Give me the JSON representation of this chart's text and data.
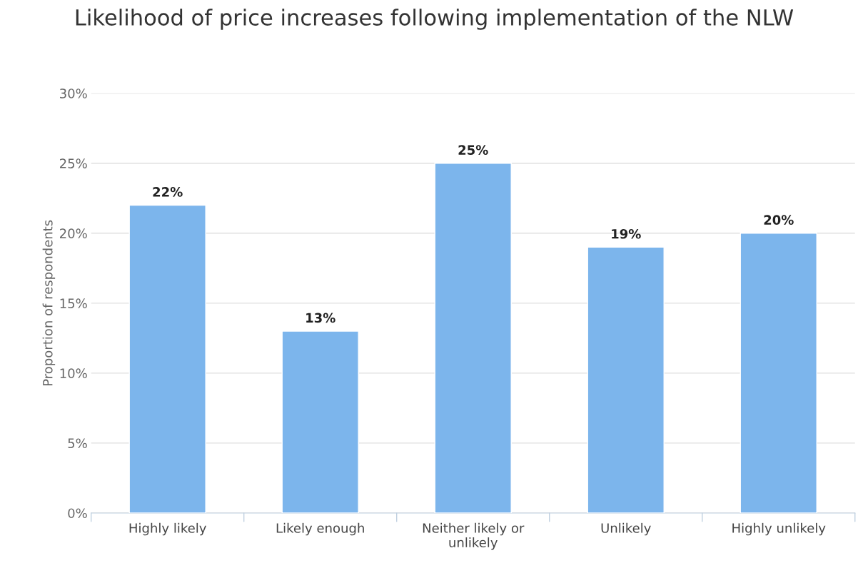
{
  "chart_data": {
    "type": "bar",
    "title": "Likelihood of price increases following implementation of the NLW",
    "ylabel": "Proportion of respondents",
    "categories": [
      "Highly likely",
      "Likely enough",
      "Neither likely or\nunlikely",
      "Unlikely",
      "Highly unlikely"
    ],
    "values": [
      22,
      13,
      25,
      19,
      20
    ],
    "color": "#7cb5ec",
    "value_labels": [
      "22%",
      "13%",
      "25%",
      "19%",
      "20%"
    ],
    "ylim": [
      0,
      30
    ],
    "yticks": [
      {
        "value": 0,
        "label": "0%"
      },
      {
        "value": 5,
        "label": "5%"
      },
      {
        "value": 10,
        "label": "10%"
      },
      {
        "value": 15,
        "label": "15%"
      },
      {
        "value": 20,
        "label": "20%"
      },
      {
        "value": 25,
        "label": "25%"
      },
      {
        "value": 30,
        "label": "30%"
      }
    ],
    "grid": "y",
    "legend": false
  }
}
